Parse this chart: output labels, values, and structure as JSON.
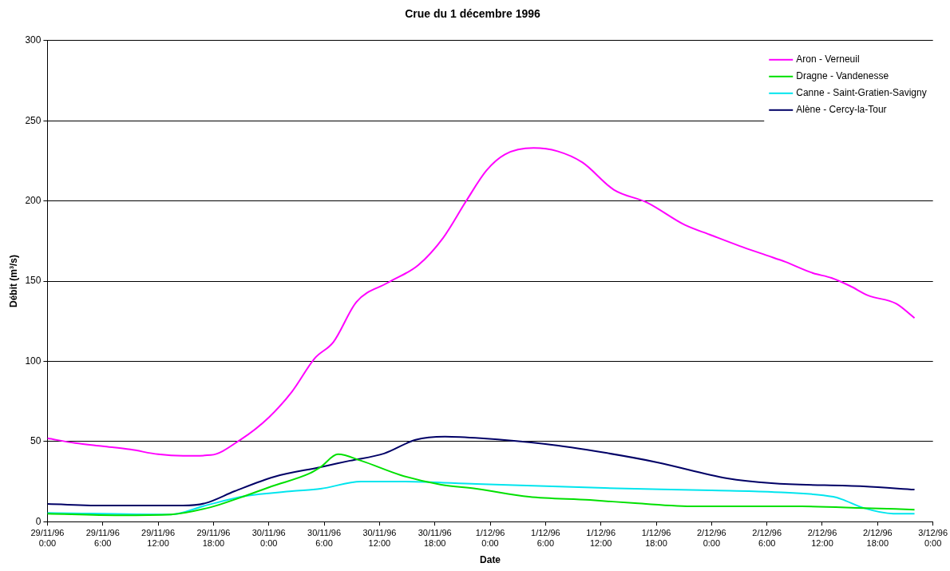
{
  "chart_data": {
    "type": "line",
    "title": "Crue du 1 décembre 1996",
    "xlabel": "Date",
    "ylabel": "Débit (m³/s)",
    "xlim": [
      "1996-11-29T00:00",
      "1996-12-03T00:00"
    ],
    "xticks": [
      {
        "value": "1996-11-29T00:00",
        "label": "29/11/96 0:00"
      },
      {
        "value": "1996-11-29T06:00",
        "label": "29/11/96 6:00"
      },
      {
        "value": "1996-11-29T12:00",
        "label": "29/11/96 12:00"
      },
      {
        "value": "1996-11-29T18:00",
        "label": "29/11/96 18:00"
      },
      {
        "value": "1996-11-30T00:00",
        "label": "30/11/96 0:00"
      },
      {
        "value": "1996-11-30T06:00",
        "label": "30/11/96 6:00"
      },
      {
        "value": "1996-11-30T12:00",
        "label": "30/11/96 12:00"
      },
      {
        "value": "1996-11-30T18:00",
        "label": "30/11/96 18:00"
      },
      {
        "value": "1996-12-01T00:00",
        "label": "1/12/96 0:00"
      },
      {
        "value": "1996-12-01T06:00",
        "label": "1/12/96 6:00"
      },
      {
        "value": "1996-12-01T12:00",
        "label": "1/12/96 12:00"
      },
      {
        "value": "1996-12-01T18:00",
        "label": "1/12/96 18:00"
      },
      {
        "value": "1996-12-02T00:00",
        "label": "2/12/96 0:00"
      },
      {
        "value": "1996-12-02T06:00",
        "label": "2/12/96 6:00"
      },
      {
        "value": "1996-12-02T12:00",
        "label": "2/12/96 12:00"
      },
      {
        "value": "1996-12-02T18:00",
        "label": "2/12/96 18:00"
      },
      {
        "value": "1996-12-03T00:00",
        "label": "3/12/96 0:00"
      }
    ],
    "ylim": [
      0,
      300
    ],
    "yticks": [
      0,
      50,
      100,
      150,
      200,
      250,
      300
    ],
    "grid": "y",
    "legend": "top right",
    "marker": "none",
    "line_style": "solid",
    "series": [
      {
        "name": "Aron - Verneuil",
        "color": "#ff00ff",
        "x": [
          "1996-11-29T00:00",
          "1996-11-29T03:00",
          "1996-11-29T06:00",
          "1996-11-29T09:00",
          "1996-11-29T12:00",
          "1996-11-29T14:42",
          "1996-11-29T17:42",
          "1996-11-29T20:54",
          "1996-11-30T00:00",
          "1996-11-30T02:30",
          "1996-11-30T05:00",
          "1996-11-30T07:00",
          "1996-11-30T09:30",
          "1996-11-30T12:54",
          "1996-11-30T16:12",
          "1996-11-30T18:54",
          "1996-11-30T21:24",
          "1996-11-30T23:36",
          "1996-12-01T01:36",
          "1996-12-01T04:42",
          "1996-12-01T07:18",
          "1996-12-01T10:00",
          "1996-12-01T13:24",
          "1996-12-01T17:00",
          "1996-12-01T21:06",
          "1996-12-01T23:48",
          "1996-12-02T03:00",
          "1996-12-02T06:00",
          "1996-12-02T08:00",
          "1996-12-02T11:00",
          "1996-12-02T13:00",
          "1996-12-02T15:00",
          "1996-12-02T17:00",
          "1996-12-02T20:00",
          "1996-12-02T22:00"
        ],
        "values": [
          52,
          49,
          47,
          45,
          42,
          41,
          41.5,
          51,
          65,
          81,
          102,
          112,
          137,
          149,
          160,
          177,
          200,
          219,
          229,
          233,
          231,
          224,
          207,
          199,
          185,
          179,
          172,
          166,
          162,
          155,
          152,
          147,
          141,
          136,
          127
        ]
      },
      {
        "name": "Dragne - Vandenesse",
        "color": "#00e000",
        "x": [
          "1996-11-29T00:00",
          "1996-11-29T07:48",
          "1996-11-29T13:24",
          "1996-11-29T17:42",
          "1996-11-29T20:54",
          "1996-11-30T00:18",
          "1996-11-30T04:24",
          "1996-11-30T05:36",
          "1996-11-30T07:30",
          "1996-11-30T10:00",
          "1996-11-30T14:18",
          "1996-11-30T18:42",
          "1996-11-30T22:30",
          "1996-12-01T04:12",
          "1996-12-01T10:48",
          "1996-12-01T15:42",
          "1996-12-01T22:18",
          "1996-12-02T09:48",
          "1996-12-02T16:30",
          "1996-12-02T22:00"
        ],
        "values": [
          5,
          4,
          4.5,
          9,
          15,
          22,
          30,
          34,
          42,
          38,
          29,
          23,
          20.5,
          15.5,
          13.5,
          11.5,
          9.5,
          9.5,
          8.5,
          7.5
        ]
      },
      {
        "name": "Canne - Saint-Gratien-Savigny",
        "color": "#00e5ee",
        "x": [
          "1996-11-29T00:00",
          "1996-11-29T13:24",
          "1996-11-29T17:06",
          "1996-11-29T21:30",
          "1996-11-30T02:30",
          "1996-11-30T05:36",
          "1996-11-30T10:00",
          "1996-11-30T14:18",
          "1996-11-30T22:30",
          "1996-12-01T12:24",
          "1996-12-02T00:00",
          "1996-12-02T06:30",
          "1996-12-02T13:12",
          "1996-12-02T14:06",
          "1996-12-02T16:30",
          "1996-12-02T19:42",
          "1996-12-02T22:00"
        ],
        "values": [
          5.5,
          4.5,
          10,
          16,
          19,
          20.5,
          25,
          25,
          23.5,
          21,
          19.5,
          18.5,
          15.5,
          14,
          8.5,
          5,
          5
        ]
      },
      {
        "name": "Alène - Cercy-la-Tour",
        "color": "#000066",
        "x": [
          "1996-11-29T00:00",
          "1996-11-29T06:30",
          "1996-11-29T14:42",
          "1996-11-29T17:06",
          "1996-11-29T20:18",
          "1996-11-30T00:36",
          "1996-11-30T05:36",
          "1996-11-30T08:48",
          "1996-11-30T12:30",
          "1996-11-30T15:54",
          "1996-11-30T19:06",
          "1996-11-30T23:00",
          "1996-12-01T05:48",
          "1996-12-01T12:24",
          "1996-12-01T18:06",
          "1996-12-02T01:42",
          "1996-12-02T06:30",
          "1996-12-02T16:30",
          "1996-12-02T22:00"
        ],
        "values": [
          11,
          10,
          10,
          11.5,
          19,
          28,
          34,
          38,
          42.5,
          51,
          53,
          52,
          48.5,
          43,
          37,
          27,
          24,
          22,
          20
        ]
      }
    ]
  }
}
